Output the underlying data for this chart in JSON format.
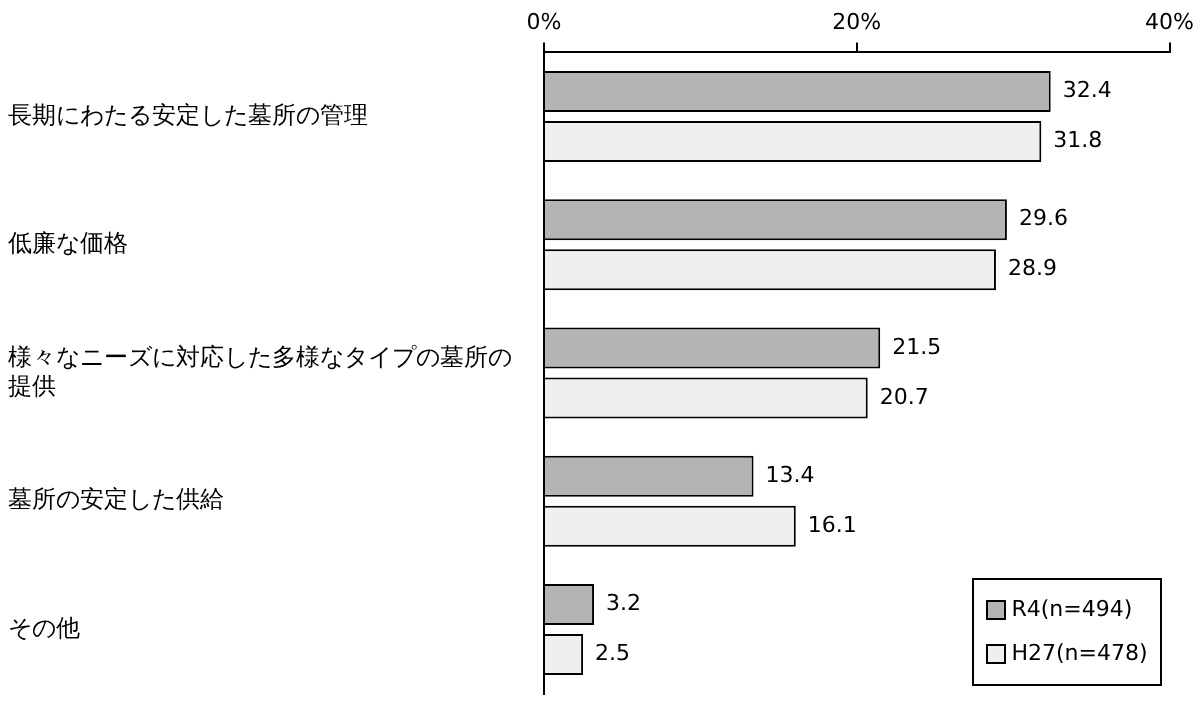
{
  "chart_data": {
    "type": "bar",
    "orientation": "horizontal",
    "categories": [
      "長期にわたる安定した墓所の管理",
      "低廉な価格",
      "様々なニーズに対応した多様なタイプの墓所の提供",
      "墓所の安定した供給",
      "その他"
    ],
    "series": [
      {
        "name": "R4(n=494)",
        "color": "#b4b4b4",
        "values": [
          32.4,
          29.6,
          21.5,
          13.4,
          3.2
        ]
      },
      {
        "name": "H27(n=478)",
        "color": "#efefef",
        "values": [
          31.8,
          28.9,
          20.7,
          16.1,
          2.5
        ]
      }
    ],
    "xlim": [
      0,
      40
    ],
    "xticks": [
      {
        "value": 0,
        "label": "0%"
      },
      {
        "value": 20,
        "label": "20%"
      },
      {
        "value": 40,
        "label": "40%"
      }
    ],
    "grid": false,
    "legend": "bottom right",
    "data_labels": true
  }
}
